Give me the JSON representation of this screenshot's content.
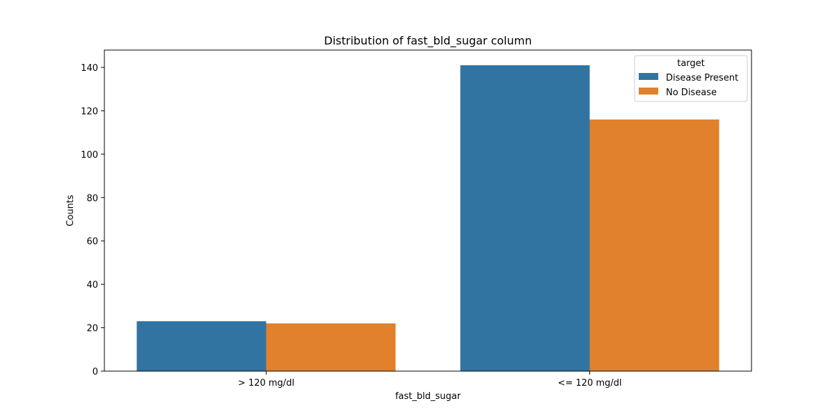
{
  "chart_data": {
    "type": "bar",
    "title": "Distribution of fast_bld_sugar column",
    "xlabel": "fast_bld_sugar",
    "ylabel": "Counts",
    "categories": [
      "> 120 mg/dl",
      "<= 120 mg/dl"
    ],
    "series": [
      {
        "name": "Disease Present",
        "values": [
          23,
          141
        ],
        "color": "#3274a1"
      },
      {
        "name": "No Disease",
        "values": [
          22,
          116
        ],
        "color": "#e1812c"
      }
    ],
    "ylim": [
      0,
      148
    ],
    "yticks": [
      0,
      20,
      40,
      60,
      80,
      100,
      120,
      140
    ],
    "legend": {
      "title": "target",
      "placement": "top-right"
    },
    "grid": false
  }
}
